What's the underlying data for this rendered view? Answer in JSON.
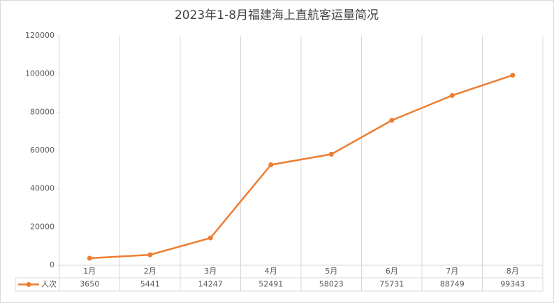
{
  "chart_data": {
    "type": "line",
    "title": "2023年1-8月福建海上直航客运量简况",
    "categories": [
      "1月",
      "2月",
      "3月",
      "4月",
      "5月",
      "6月",
      "7月",
      "8月"
    ],
    "series": [
      {
        "name": "人次",
        "color": "#ed7d31",
        "values": [
          3650,
          5441,
          14247,
          52491,
          58023,
          75731,
          88749,
          99343
        ]
      }
    ],
    "ylim": [
      0,
      120000
    ],
    "yticks": [
      0,
      20000,
      40000,
      60000,
      80000,
      100000,
      120000
    ],
    "data_table": true
  }
}
